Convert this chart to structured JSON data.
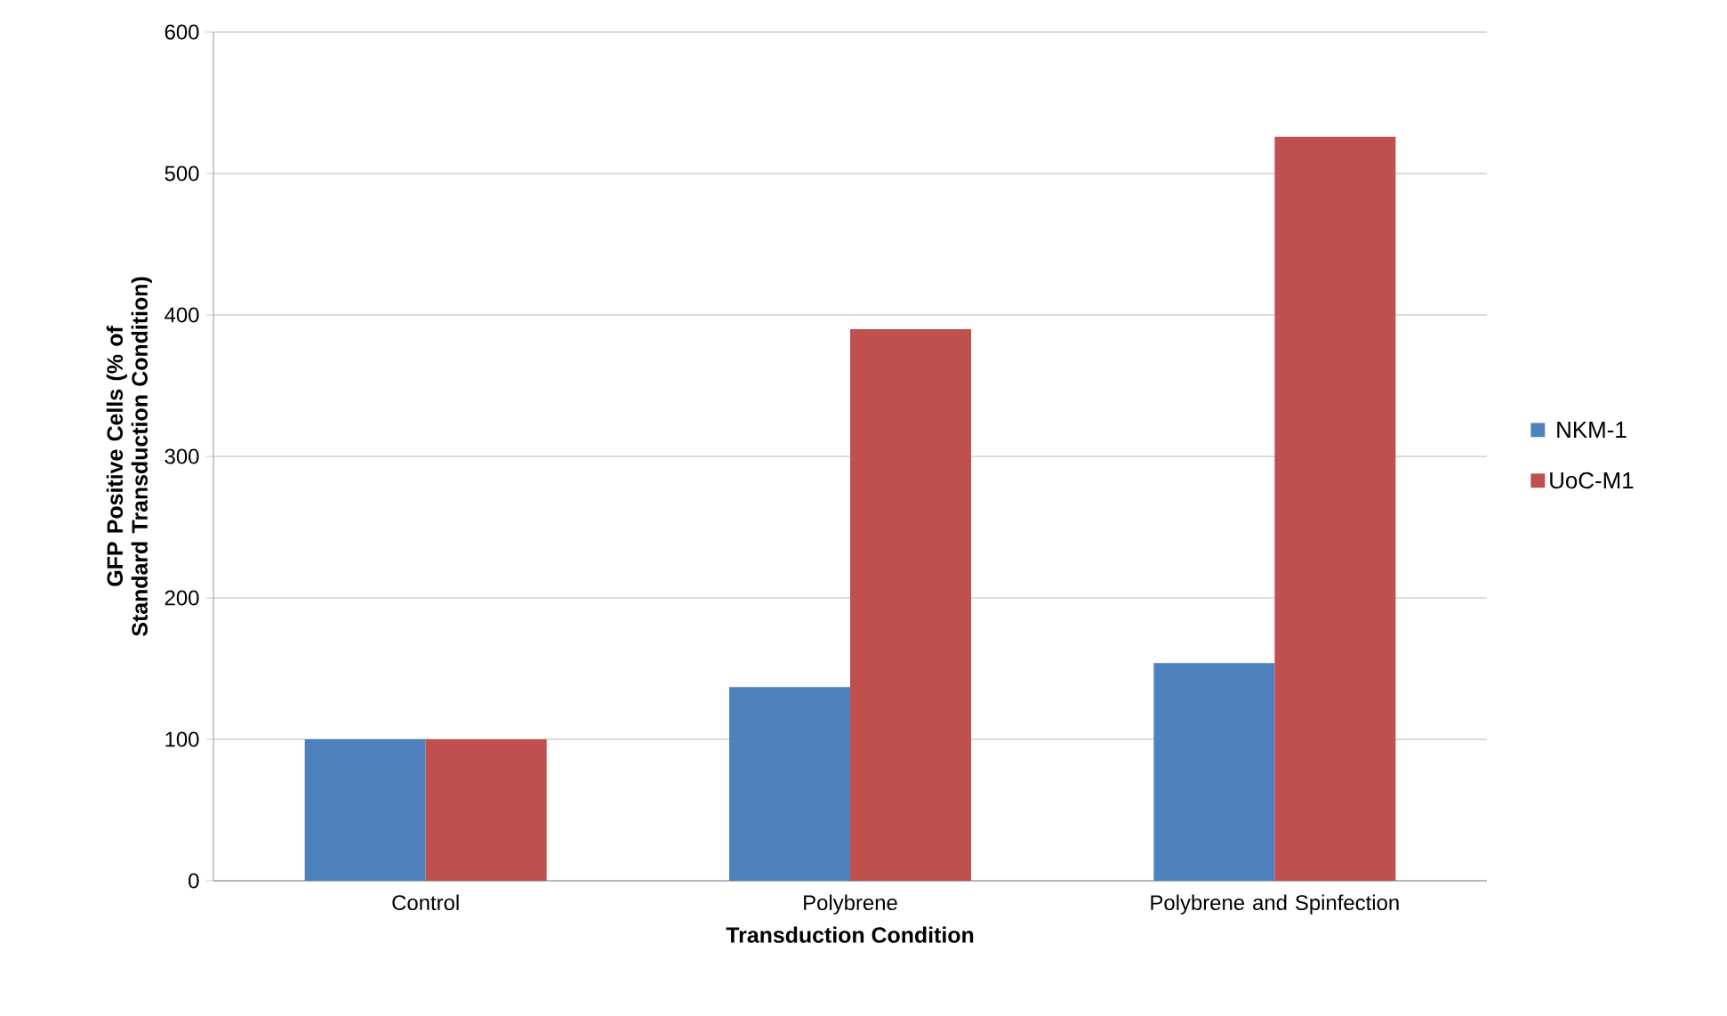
{
  "chart_data": {
    "type": "bar",
    "xlabel": "Transduction Condition",
    "ylabel": "GFP Positive Cells (% of Standard Transduction Condition)",
    "categories": [
      "Control",
      "Polybrene",
      "Polybrene and Spinfection"
    ],
    "series": [
      {
        "name": "NKM-1",
        "color": "#4f81bd",
        "values": [
          100,
          137,
          154
        ]
      },
      {
        "name": "UoC-M1",
        "color": "#c0504d",
        "values": [
          100,
          390,
          526
        ]
      }
    ],
    "ylim": [
      0,
      600
    ],
    "yticks": [
      0,
      100,
      200,
      300,
      400,
      500,
      600
    ],
    "grid": "y",
    "legend": "right"
  }
}
